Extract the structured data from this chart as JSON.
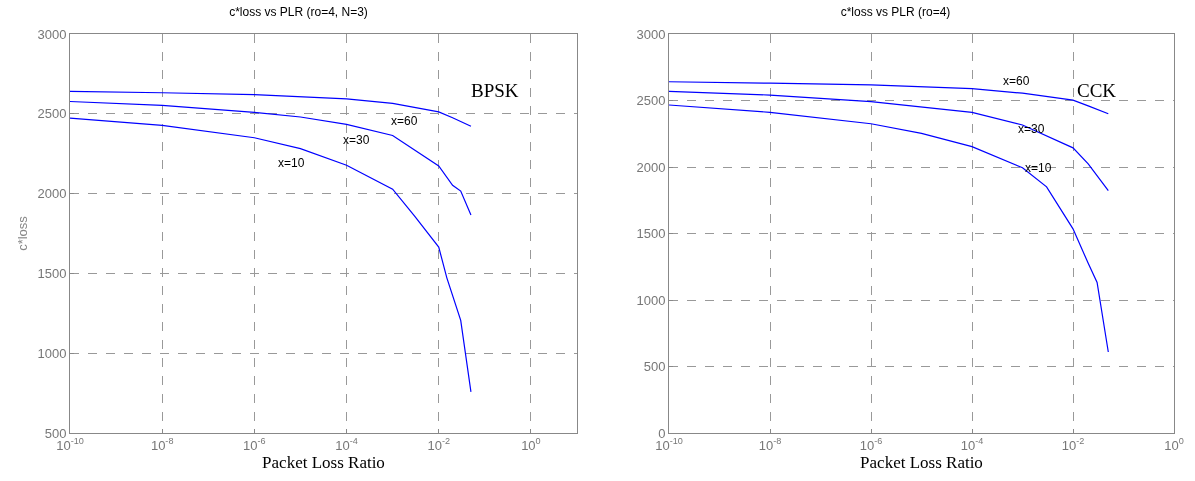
{
  "chart_data": [
    {
      "type": "line",
      "title": "c*loss vs PLR (ro=4, N=3)",
      "xlabel": "Packet Loss Ratio",
      "ylabel": "c*loss",
      "log": "x",
      "grid": true,
      "line_style": "solid",
      "marker": "none",
      "xlim": [
        1e-10,
        10
      ],
      "ylim": [
        500,
        3000
      ],
      "xticks": [
        {
          "value": 1e-10,
          "label": "10$^{-10}$"
        },
        {
          "value": 1e-08,
          "label": "10$^{-8}$"
        },
        {
          "value": 1e-06,
          "label": "10$^{-6}$"
        },
        {
          "value": 0.0001,
          "label": "10$^{-4}$"
        },
        {
          "value": 0.01,
          "label": "10$^{-2}$"
        },
        {
          "value": 1,
          "label": "10$^{0}$"
        }
      ],
      "yticks": [
        500,
        1000,
        1500,
        2000,
        2500,
        3000
      ],
      "series": [
        {
          "name": "x=60",
          "color": "#0000ff",
          "x": [
            1e-10,
            1e-08,
            1e-06,
            0.0001,
            0.001,
            0.01,
            0.02,
            0.05
          ],
          "values": [
            2640,
            2632,
            2620,
            2594,
            2565,
            2512,
            2475,
            2422
          ]
        },
        {
          "name": "x=30",
          "color": "#0000ff",
          "x": [
            1e-10,
            1e-08,
            1e-06,
            1e-05,
            0.0001,
            0.001,
            0.01,
            0.02,
            0.03,
            0.05
          ],
          "values": [
            2577,
            2553,
            2509,
            2480,
            2434,
            2364,
            2173,
            2052,
            2016,
            1866
          ]
        },
        {
          "name": "x=10",
          "color": "#0000ff",
          "x": [
            1e-10,
            1e-08,
            1e-06,
            1e-05,
            0.0001,
            0.001,
            0.003,
            0.01,
            0.015,
            0.03,
            0.05
          ],
          "values": [
            2473,
            2427,
            2350,
            2282,
            2178,
            2028,
            1859,
            1665,
            1472,
            1206,
            758
          ]
        }
      ],
      "annotations": [
        "BPSK"
      ]
    },
    {
      "type": "line",
      "title": "c*loss vs PLR (ro=4)",
      "xlabel": "Packet Loss Ratio",
      "log": "x",
      "grid": true,
      "line_style": "solid",
      "marker": "none",
      "xlim": [
        1e-10,
        1
      ],
      "ylim": [
        0,
        3000
      ],
      "xticks": [
        {
          "value": 1e-10,
          "label": "10$^{-10}$"
        },
        {
          "value": 1e-08,
          "label": "10$^{-8}$"
        },
        {
          "value": 1e-06,
          "label": "10$^{-6}$"
        },
        {
          "value": 0.0001,
          "label": "10$^{-4}$"
        },
        {
          "value": 0.01,
          "label": "10$^{-2}$"
        },
        {
          "value": 1,
          "label": "10$^{0}$"
        }
      ],
      "yticks": [
        0,
        500,
        1000,
        1500,
        2000,
        2500,
        3000
      ],
      "series": [
        {
          "name": "x=60",
          "color": "#0000ff",
          "x": [
            1e-10,
            1e-08,
            1e-06,
            0.0001,
            0.001,
            0.01,
            0.02,
            0.05
          ],
          "values": [
            2641,
            2630,
            2618,
            2589,
            2555,
            2503,
            2460,
            2400
          ]
        },
        {
          "name": "x=30",
          "color": "#0000ff",
          "x": [
            1e-10,
            1e-08,
            1e-06,
            0.0001,
            0.001,
            0.01,
            0.02,
            0.05
          ],
          "values": [
            2569,
            2541,
            2492,
            2411,
            2316,
            2144,
            2023,
            1822
          ]
        },
        {
          "name": "x=10",
          "color": "#0000ff",
          "x": [
            1e-10,
            1e-08,
            1e-06,
            1e-05,
            0.0001,
            0.001,
            0.003,
            0.01,
            0.02,
            0.03,
            0.05
          ],
          "values": [
            2466,
            2411,
            2325,
            2253,
            2153,
            1994,
            1851,
            1535,
            1276,
            1132,
            609
          ]
        }
      ],
      "annotations": [
        "CCK"
      ]
    }
  ]
}
